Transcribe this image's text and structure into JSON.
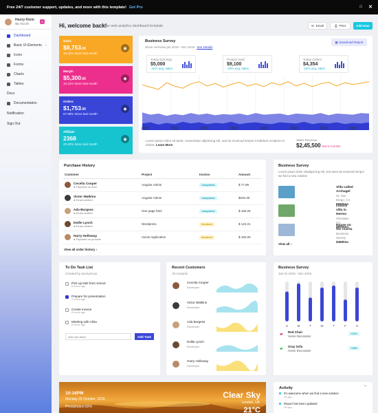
{
  "topbar": {
    "text": "Free 24/7 customer support, updates, and more with this template!",
    "cta": "Get Pro"
  },
  "sidebar": {
    "user_name": "Henry Klein",
    "user_balance": "$8,753.00",
    "badge": "4",
    "items": [
      {
        "label": "Dashboard",
        "active": true,
        "icon": "dashboard-icon"
      },
      {
        "label": "Basic UI Elements",
        "active": false,
        "icon": "layers-icon",
        "chevron": true
      },
      {
        "label": "Icons",
        "active": false,
        "icon": "icons-icon"
      },
      {
        "label": "Forms",
        "active": false,
        "icon": "forms-icon"
      },
      {
        "label": "Charts",
        "active": false,
        "icon": "charts-icon"
      },
      {
        "label": "Tables",
        "active": false,
        "icon": "tables-icon"
      },
      {
        "label": "Docs",
        "active": false,
        "icon": ""
      },
      {
        "label": "Documentation",
        "active": false,
        "icon": "documentation-icon"
      }
    ],
    "notification": "Notification",
    "signout": "Sign Out"
  },
  "header": {
    "title": "Hi, welcome back!",
    "subtitle": "Your web analytics dashboard template.",
    "email": "Email",
    "print": "Print",
    "add_user": "Add User"
  },
  "stats": [
    {
      "label": "Sales",
      "value": "$8,753",
      "cents": ".00",
      "sub": "18.42% Since last month",
      "color": "#f9a825",
      "icon": "wallet-icon"
    },
    {
      "label": "Margin",
      "value": "$5,300",
      "cents": ".00",
      "sub": "10.21% Since last month",
      "color": "#ec2f8c",
      "icon": "target-icon"
    },
    {
      "label": "Orders",
      "value": "$1,753",
      "cents": ".00",
      "sub": "67.98% Since last month",
      "color": "#3845d7",
      "icon": "cart-icon"
    },
    {
      "label": "Affiliate",
      "value": "2368",
      "cents": "",
      "sub": "20.32% Since last month",
      "color": "#16c4d0",
      "icon": "briefcase-icon"
    }
  ],
  "survey": {
    "title": "Business Survey",
    "subtitle": "Show overview jan 2018 - Dec 2019",
    "link": "See Details",
    "download": "Download Report",
    "kpis": [
      {
        "label": "Today Earnings",
        "value": "$5,000",
        "change": "-41% avg. sales"
      },
      {
        "label": "Product Sold",
        "value": "$9,100",
        "change": "-20% avg. sales"
      },
      {
        "label": "Today Orders",
        "value": "$4,354",
        "change": "-15% avg. sales"
      }
    ],
    "axis_labels": [
      "2000",
      "2500",
      "3000",
      "3500",
      "4000",
      "4500",
      "5000",
      "5500"
    ],
    "footer_text": "Lorem ipsum dolor sit amet, consectetur adipiscing elit, sed do eiusmod tempor incididunt ut labore et dolore.",
    "learn_more": "Learn More",
    "revenue_label": "Sales Revenue",
    "revenue_value": "$2,45,500",
    "revenue_change": "last 6 months"
  },
  "chart_data": {
    "type": "area",
    "x_ticks": [
      "2000",
      "2500",
      "3000",
      "3500",
      "4000",
      "4500",
      "5000",
      "5500"
    ],
    "series": [
      {
        "color": "#f5a623",
        "values": [
          0.82,
          0.78,
          0.74,
          0.86,
          0.8,
          0.76,
          0.84,
          0.88,
          0.8,
          0.85,
          0.78,
          0.83,
          0.87,
          0.8,
          0.84,
          0.79,
          0.86,
          0.82,
          0.88,
          0.8,
          0.85,
          0.79,
          0.84,
          0.87,
          0.8,
          0.86,
          0.83,
          0.85,
          0.88
        ]
      },
      {
        "color": "#7d84e6",
        "values": [
          0.32,
          0.28,
          0.3,
          0.26,
          0.29,
          0.27,
          0.31,
          0.28,
          0.3,
          0.27,
          0.29,
          0.28,
          0.3,
          0.27,
          0.31,
          0.28,
          0.29,
          0.3,
          0.27,
          0.3,
          0.29,
          0.28,
          0.31,
          0.27,
          0.3,
          0.29,
          0.28,
          0.31,
          0.3
        ]
      },
      {
        "color": "#2f3bd1",
        "values": [
          0.12,
          0.14,
          0.1,
          0.13,
          0.11,
          0.15,
          0.12,
          0.14,
          0.11,
          0.13,
          0.12,
          0.15,
          0.11,
          0.13,
          0.14,
          0.12,
          0.11,
          0.14,
          0.13,
          0.12,
          0.15,
          0.11,
          0.13,
          0.12,
          0.14,
          0.11,
          0.13,
          0.12,
          0.14
        ]
      }
    ]
  },
  "purchase": {
    "title": "Purchase History",
    "columns": [
      "Customer",
      "Project",
      "Invoice",
      "Amount"
    ],
    "rows": [
      {
        "name": "Cecelia Cooper",
        "status_text": "Payment on hold",
        "project": "Angular Admin",
        "invoice": "Completed",
        "amount": "$ 77.99",
        "av": "#8a5a3a"
      },
      {
        "name": "Victor Watkins",
        "status_text": "Email verified",
        "project": "Angular Admin",
        "invoice": "Completed",
        "amount": "$245.30",
        "av": "#3b3b3b"
      },
      {
        "name": "Ada Burgess",
        "status_text": "Email verified",
        "project": "One page html",
        "invoice": "Completed",
        "amount": "$ 160.25",
        "av": "#c8a17a"
      },
      {
        "name": "Dollie Lynch",
        "status_text": "Email verified",
        "project": "Wordpress",
        "invoice": "Declined",
        "amount": "$ 123.21",
        "av": "#6b4a32"
      },
      {
        "name": "Harry Holloway",
        "status_text": "Payment on process",
        "project": "VueJs Application",
        "invoice": "Declined",
        "amount": "$ 150.00",
        "av": "#b88b66"
      }
    ],
    "view_all": "View all order history"
  },
  "properties": {
    "title": "Business Survey",
    "desc": "Lorem ipsum dolor sitadipiscing elit, sed amet do eiusmod tempor we find a new solution",
    "items": [
      {
        "name": "Villa called Archagel",
        "loc": "St. San Diego, CA",
        "price": "$600/mo",
        "img": "#5aa0c8"
      },
      {
        "name": "Luxury villa in Hermo",
        "loc": "Glendale, CA",
        "price": "$900/mo",
        "img": "#6fa86a"
      },
      {
        "name": "House on the Clarita",
        "loc": "Business Survey",
        "price": "$459/mo",
        "img": "#9cb8d6"
      }
    ],
    "view_all": "View all"
  },
  "todo": {
    "title": "To Do Task List",
    "subtitle": "Created by anonymous",
    "items": [
      {
        "text": "Pick up kids from school",
        "time": "6 hours ago",
        "checked": false
      },
      {
        "text": "Prepare for presentation",
        "time": "2 hours ago",
        "checked": true
      },
      {
        "text": "Create invoice",
        "time": "6 hours ago",
        "checked": false
      },
      {
        "text": "Meeting with Alisa",
        "time": "6 hours ago",
        "checked": false
      }
    ],
    "placeholder": "Add new items",
    "add": "Add Task"
  },
  "customers": {
    "title": "Recent Customers",
    "subtitle": "All contacts",
    "items": [
      {
        "name": "Cecelia Cooper",
        "role": "Developer",
        "color": "#a6e3ef",
        "av": "#8a5a3a"
      },
      {
        "name": "Victor Watkins",
        "role": "Developer",
        "color": "#a6e3ef",
        "av": "#3b3b3b"
      },
      {
        "name": "Ada Burgess",
        "role": "Developer",
        "color": "#fbe07a",
        "av": "#c8a17a"
      },
      {
        "name": "Dollie Lynch",
        "role": "Developer",
        "color": "#a6e3ef",
        "av": "#6b4a32"
      },
      {
        "name": "Harry Holloway",
        "role": "Developer",
        "color": "#fbe07a",
        "av": "#b88b66"
      }
    ]
  },
  "survey2": {
    "title": "Business Survey",
    "subtitle": "Jan 01 2019 - Dec 2019",
    "days": [
      "S",
      "M",
      "T",
      "W",
      "T",
      "F",
      "S"
    ],
    "values": [
      0.75,
      0.95,
      0.6,
      0.85,
      0.9,
      0.55,
      0.85
    ],
    "legend": [
      {
        "title": "Red Chair",
        "sub": "Home Decoration",
        "pct": "+21%",
        "icon": "car-icon",
        "color": "#e0245e"
      },
      {
        "title": "Gray Sofa",
        "sub": "Home Decoration",
        "pct": "+18%",
        "icon": "car-icon",
        "color": "#2ab34a"
      }
    ]
  },
  "weather": {
    "time": "10:16PM",
    "date": "Monday 25 October, 2016",
    "precip": "Precipitation:50%",
    "sky": "Clear Sky",
    "location": "London, UK",
    "temp": "21°C"
  },
  "activity": {
    "title": "Activity",
    "items": [
      {
        "text": "It's awesome when we find a new solution",
        "time": "2h ago",
        "color": "#19c7e0"
      },
      {
        "text": "Report has been updated",
        "time": "2h ago",
        "color": "#19c7e0"
      }
    ]
  }
}
